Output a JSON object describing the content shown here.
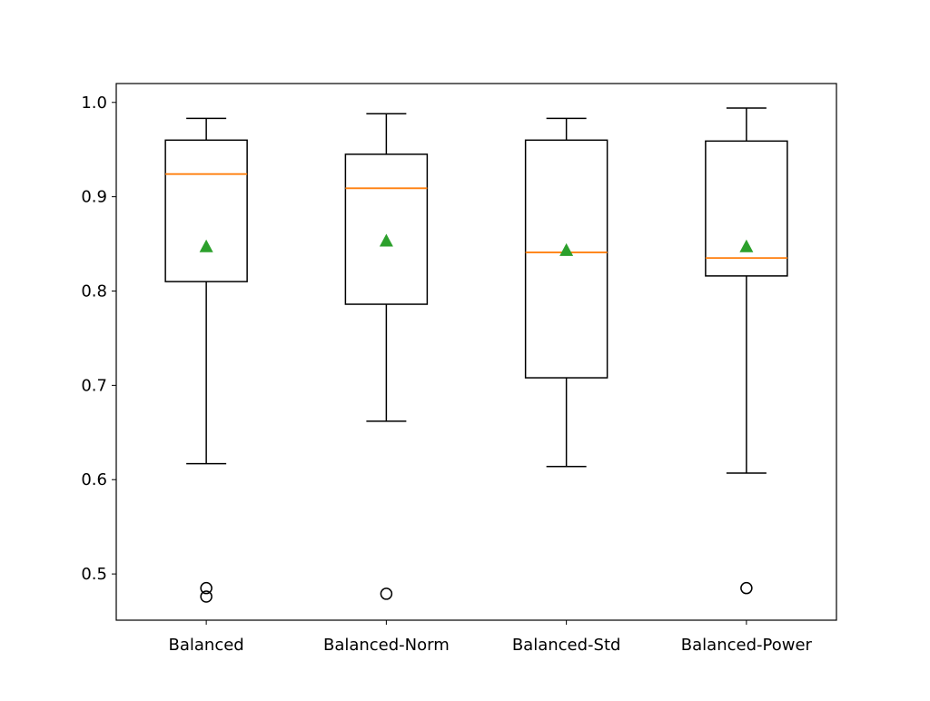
{
  "chart_data": {
    "type": "boxplot",
    "title": "",
    "xlabel": "",
    "ylabel": "",
    "ylim": [
      0.451,
      1.02
    ],
    "yticks": [
      "0.5",
      "0.6",
      "0.7",
      "0.8",
      "0.9",
      "1.0"
    ],
    "grid": false,
    "categories": [
      "Balanced",
      "Balanced-Norm",
      "Balanced-Std",
      "Balanced-Power"
    ],
    "boxes": [
      {
        "whisker_low": 0.617,
        "q1": 0.81,
        "median": 0.924,
        "q3": 0.96,
        "whisker_high": 0.983,
        "mean": 0.847,
        "outliers": [
          0.485,
          0.476
        ]
      },
      {
        "whisker_low": 0.662,
        "q1": 0.786,
        "median": 0.909,
        "q3": 0.945,
        "whisker_high": 0.988,
        "mean": 0.853,
        "outliers": [
          0.479
        ]
      },
      {
        "whisker_low": 0.614,
        "q1": 0.708,
        "median": 0.841,
        "q3": 0.96,
        "whisker_high": 0.983,
        "mean": 0.843,
        "outliers": []
      },
      {
        "whisker_low": 0.607,
        "q1": 0.816,
        "median": 0.835,
        "q3": 0.959,
        "whisker_high": 0.994,
        "mean": 0.847,
        "outliers": [
          0.485
        ]
      }
    ],
    "colors": {
      "box": "#000000",
      "median": "#ff7f0e",
      "mean": "#2ca02c"
    }
  }
}
